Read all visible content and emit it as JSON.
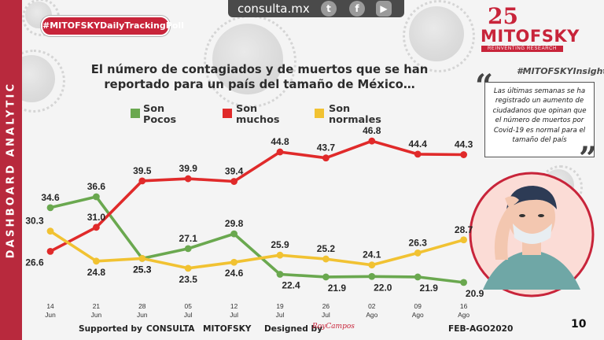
{
  "sidebar": {
    "label": "DASHBOARD ANALYTIC"
  },
  "topbar": {
    "site": "consulta.mx",
    "icons": [
      "twitter-icon",
      "facebook-icon",
      "youtube-icon"
    ]
  },
  "poll_badge": "#MITOFSKYDailyTrackingPoll",
  "logo": {
    "anniversary": "25",
    "name": "MITOFSKY",
    "tagline": "REINVENTING RESEARCH"
  },
  "insight": {
    "tag": "#MITOFSKYInsight",
    "text": "Las últimas semanas se ha registrado un aumento de ciudadanos que opinan que el número de muertos por Covid-19 es normal para el tamaño del país"
  },
  "footer": {
    "supported": "Supported by",
    "consulta": "CONSULTA",
    "mitofsky": "MITOFSKY",
    "designed": "Designed by",
    "designer": "RoyCampos",
    "period": "FEB-AGO2020",
    "page": "10"
  },
  "colors": {
    "accent": "#c8243a",
    "pocos": "#6aa84f",
    "muchos": "#e02a2a",
    "normales": "#f1c232"
  },
  "chart_data": {
    "type": "line",
    "title": "El número de contagiados y de muertos que se han reportado para un país del tamaño de México…",
    "categories": [
      [
        "14",
        "Jun"
      ],
      [
        "21",
        "Jun"
      ],
      [
        "28",
        "Jun"
      ],
      [
        "05",
        "Jul"
      ],
      [
        "12",
        "Jul"
      ],
      [
        "19",
        "Jul"
      ],
      [
        "26",
        "Jul"
      ],
      [
        "02",
        "Ago"
      ],
      [
        "09",
        "Ago"
      ],
      [
        "16",
        "Ago"
      ]
    ],
    "ylim": [
      18,
      50
    ],
    "series": [
      {
        "name": "Son Pocos",
        "name_lines": [
          "Son",
          "Pocos"
        ],
        "color": "#6aa84f",
        "values": [
          34.6,
          36.6,
          25.3,
          27.1,
          29.8,
          22.4,
          21.9,
          22.0,
          21.9,
          20.9
        ],
        "labels": [
          "34.6",
          "36.6",
          "25.3",
          "27.1",
          "29.8",
          "22.4",
          "21.9",
          "22.0",
          "21.9",
          "20.9"
        ]
      },
      {
        "name": "Son muchos",
        "name_lines": [
          "Son",
          "muchos"
        ],
        "color": "#e02a2a",
        "values": [
          26.6,
          31.0,
          39.5,
          39.9,
          39.4,
          44.8,
          43.7,
          46.8,
          44.4,
          44.3
        ],
        "labels": [
          "26.6",
          "31.0",
          "39.5",
          "39.9",
          "39.4",
          "44.8",
          "43.7",
          "46.8",
          "44.4",
          "44.3"
        ]
      },
      {
        "name": "Son normales",
        "name_lines": [
          "Son",
          "normales"
        ],
        "color": "#f1c232",
        "values": [
          30.3,
          24.8,
          25.3,
          23.5,
          24.6,
          25.9,
          25.2,
          24.1,
          26.3,
          28.7
        ],
        "labels": [
          "30.3",
          "24.8",
          "25.3",
          "23.5",
          "24.6",
          "25.9",
          "25.2",
          "24.1",
          "26.3",
          "28.7"
        ]
      }
    ]
  }
}
